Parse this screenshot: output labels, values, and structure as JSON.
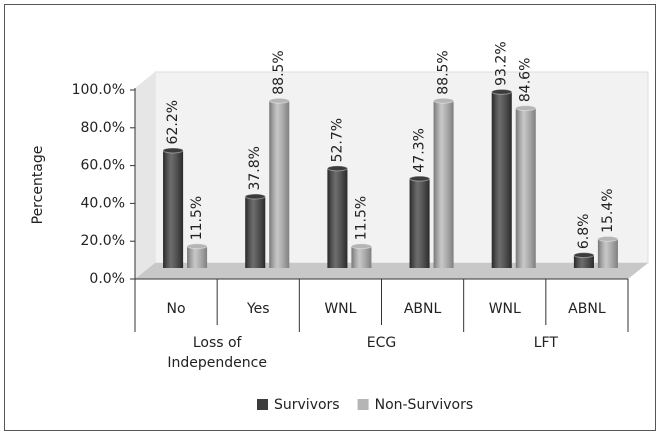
{
  "chart_data": {
    "type": "bar",
    "y_label": "Percentage",
    "groups": [
      {
        "label": "Loss of Independence",
        "count": 2
      },
      {
        "label": "ECG",
        "count": 2
      },
      {
        "label": "LFT",
        "count": 2
      }
    ],
    "categories": [
      "No",
      "Yes",
      "WNL",
      "ABNL",
      "WNL",
      "ABNL"
    ],
    "series": [
      {
        "name": "Survivors",
        "color": "#3c3c3c",
        "values": [
          62.2,
          37.8,
          52.7,
          47.3,
          93.2,
          6.8
        ],
        "value_labels": [
          "62.2%",
          "37.8%",
          "52.7%",
          "47.3%",
          "93.2%",
          "6.8%"
        ]
      },
      {
        "name": "Non-Survivors",
        "color": "#b5b5b5",
        "values": [
          11.5,
          88.5,
          11.5,
          88.5,
          84.6,
          15.4
        ],
        "value_labels": [
          "11.5%",
          "88.5%",
          "11.5%",
          "88.5%",
          "84.6%",
          "15.4%"
        ]
      }
    ],
    "ylim": [
      0,
      100
    ],
    "yticks": [
      {
        "value": 0,
        "label": "0.0%"
      },
      {
        "value": 20,
        "label": "20.0%"
      },
      {
        "value": 40,
        "label": "40.0%"
      },
      {
        "value": 60,
        "label": "60.0%"
      },
      {
        "value": 80,
        "label": "80.0%"
      },
      {
        "value": 100,
        "label": "100.0%"
      }
    ],
    "grid": false
  }
}
